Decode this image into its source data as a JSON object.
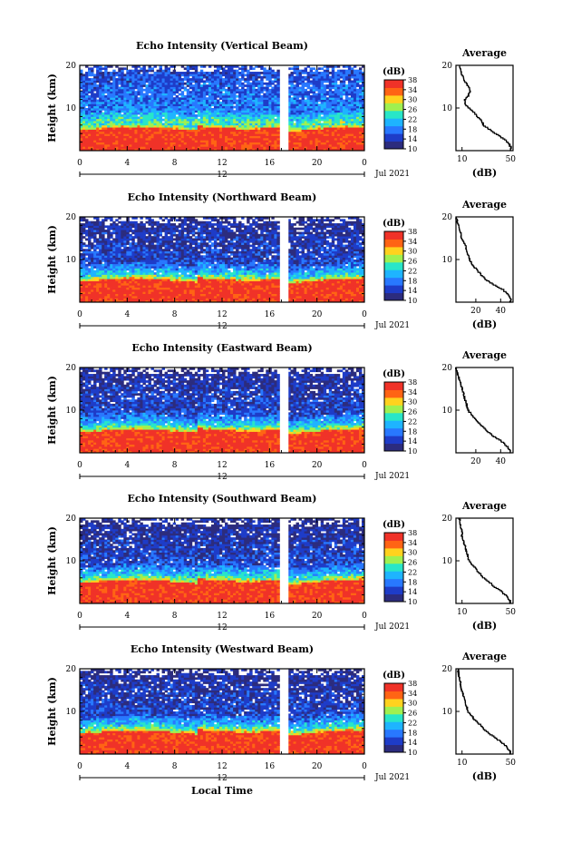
{
  "chart_data": [
    {
      "type": "heatmap",
      "title": "Echo Intensity (Vertical Beam)",
      "ylabel": "Height (km)",
      "ylim": [
        0,
        20
      ],
      "y_ticks": [
        10,
        20
      ],
      "xlim": [
        0,
        24
      ],
      "x_ticks": [
        "0",
        "4",
        "8",
        "12",
        "16",
        "20",
        "0"
      ],
      "x_tick_values": [
        0,
        4,
        8,
        12,
        16,
        20,
        24
      ],
      "date_marker": "12",
      "date_label": "Jul 2021",
      "gap_hours": [
        16.9,
        17.6
      ],
      "colorbar": {
        "unit": "(dB)",
        "ticks": [
          "10",
          "14",
          "18",
          "22",
          "26",
          "30",
          "34",
          "38"
        ],
        "range": [
          10,
          38
        ],
        "colors": [
          "#2c2c7e",
          "#1e3cc8",
          "#2878ff",
          "#1eb4ff",
          "#28e6c8",
          "#a0f050",
          "#ffd21e",
          "#ff6414",
          "#f03228"
        ]
      },
      "profile": {
        "title": "Average",
        "xlabel": "(dB)",
        "x_ticks": [
          "10",
          "50"
        ],
        "x_tick_values": [
          10,
          50
        ],
        "xlim": [
          5,
          52
        ],
        "height_km": [
          0,
          1,
          2,
          3,
          4,
          5,
          6,
          7,
          8,
          9,
          10,
          11,
          12,
          13,
          14,
          15,
          16,
          17,
          18,
          19,
          20
        ],
        "value_db": [
          50,
          50,
          48,
          44,
          38,
          33,
          28,
          26,
          23,
          20,
          16,
          13,
          12,
          15,
          17,
          16,
          13,
          11,
          10,
          9,
          8
        ]
      }
    },
    {
      "type": "heatmap",
      "title": "Echo Intensity (Northward Beam)",
      "ylabel": "Height (km)",
      "ylim": [
        0,
        20
      ],
      "y_ticks": [
        10,
        20
      ],
      "xlim": [
        0,
        24
      ],
      "x_ticks": [
        "0",
        "4",
        "8",
        "12",
        "16",
        "20",
        "0"
      ],
      "x_tick_values": [
        0,
        4,
        8,
        12,
        16,
        20,
        24
      ],
      "date_marker": "12",
      "date_label": "Jul 2021",
      "gap_hours": [
        16.9,
        17.6
      ],
      "colorbar": {
        "unit": "(dB)",
        "ticks": [
          "10",
          "14",
          "18",
          "22",
          "26",
          "30",
          "34",
          "38"
        ],
        "range": [
          10,
          38
        ],
        "colors": [
          "#2c2c7e",
          "#1e3cc8",
          "#2878ff",
          "#1eb4ff",
          "#28e6c8",
          "#a0f050",
          "#ffd21e",
          "#ff6414",
          "#f03228"
        ]
      },
      "profile": {
        "title": "Average",
        "xlabel": "(dB)",
        "x_ticks": [
          "20",
          "40"
        ],
        "x_tick_values": [
          20,
          40
        ],
        "xlim": [
          4,
          50
        ],
        "height_km": [
          0,
          1,
          2,
          3,
          4,
          5,
          6,
          7,
          8,
          9,
          10,
          11,
          12,
          13,
          14,
          15,
          16,
          17,
          18,
          19,
          20
        ],
        "value_db": [
          48,
          48,
          46,
          42,
          36,
          30,
          26,
          23,
          20,
          17,
          15,
          14,
          13,
          12,
          11,
          9,
          8,
          7,
          6,
          5,
          4
        ]
      }
    },
    {
      "type": "heatmap",
      "title": "Echo Intensity (Eastward Beam)",
      "ylabel": "Height (km)",
      "ylim": [
        0,
        20
      ],
      "y_ticks": [
        10,
        20
      ],
      "xlim": [
        0,
        24
      ],
      "x_ticks": [
        "0",
        "4",
        "8",
        "12",
        "16",
        "20",
        "0"
      ],
      "x_tick_values": [
        0,
        4,
        8,
        12,
        16,
        20,
        24
      ],
      "date_marker": "12",
      "date_label": "Jul 2021",
      "gap_hours": [
        16.9,
        17.6
      ],
      "colorbar": {
        "unit": "(dB)",
        "ticks": [
          "10",
          "14",
          "18",
          "22",
          "26",
          "30",
          "34",
          "38"
        ],
        "range": [
          10,
          38
        ],
        "colors": [
          "#2c2c7e",
          "#1e3cc8",
          "#2878ff",
          "#1eb4ff",
          "#28e6c8",
          "#a0f050",
          "#ffd21e",
          "#ff6414",
          "#f03228"
        ]
      },
      "profile": {
        "title": "Average",
        "xlabel": "",
        "x_ticks": [
          "20",
          "40"
        ],
        "x_tick_values": [
          20,
          40
        ],
        "xlim": [
          4,
          50
        ],
        "height_km": [
          0,
          1,
          2,
          3,
          4,
          5,
          6,
          7,
          8,
          9,
          10,
          11,
          12,
          13,
          14,
          15,
          16,
          17,
          18,
          19,
          20
        ],
        "value_db": [
          48,
          47,
          44,
          40,
          34,
          30,
          26,
          23,
          20,
          17,
          14,
          13,
          12,
          11,
          10,
          9,
          8,
          7,
          6,
          5,
          4
        ]
      }
    },
    {
      "type": "heatmap",
      "title": "Echo Intensity (Southward Beam)",
      "ylabel": "Height (km)",
      "ylim": [
        0,
        20
      ],
      "y_ticks": [
        10,
        20
      ],
      "xlim": [
        0,
        24
      ],
      "x_ticks": [
        "0",
        "4",
        "8",
        "12",
        "16",
        "20",
        "0"
      ],
      "x_tick_values": [
        0,
        4,
        8,
        12,
        16,
        20,
        24
      ],
      "date_marker": "12",
      "date_label": "Jul 2021",
      "gap_hours": [
        16.9,
        17.6
      ],
      "colorbar": {
        "unit": "(dB)",
        "ticks": [
          "10",
          "14",
          "18",
          "22",
          "26",
          "30",
          "34",
          "38"
        ],
        "range": [
          10,
          38
        ],
        "colors": [
          "#2c2c7e",
          "#1e3cc8",
          "#2878ff",
          "#1eb4ff",
          "#28e6c8",
          "#a0f050",
          "#ffd21e",
          "#ff6414",
          "#f03228"
        ]
      },
      "profile": {
        "title": "Average",
        "xlabel": "(dB)",
        "x_ticks": [
          "10",
          "50"
        ],
        "x_tick_values": [
          10,
          50
        ],
        "xlim": [
          5,
          52
        ],
        "height_km": [
          0,
          1,
          2,
          3,
          4,
          5,
          6,
          7,
          8,
          9,
          10,
          11,
          12,
          13,
          14,
          15,
          16,
          17,
          18,
          19,
          20
        ],
        "value_db": [
          50,
          49,
          46,
          42,
          37,
          33,
          28,
          25,
          22,
          19,
          16,
          15,
          14,
          13,
          12,
          11,
          10,
          10,
          9,
          8,
          8
        ]
      }
    },
    {
      "type": "heatmap",
      "title": "Echo Intensity (Westward Beam)",
      "ylabel": "Height (km)",
      "xlabel": "Local Time",
      "ylim": [
        0,
        20
      ],
      "y_ticks": [
        10,
        20
      ],
      "xlim": [
        0,
        24
      ],
      "x_ticks": [
        "0",
        "4",
        "8",
        "12",
        "16",
        "20",
        "0"
      ],
      "x_tick_values": [
        0,
        4,
        8,
        12,
        16,
        20,
        24
      ],
      "date_marker": "12",
      "date_label": "Jul 2021",
      "gap_hours": [
        16.9,
        17.6
      ],
      "colorbar": {
        "unit": "(dB)",
        "ticks": [
          "10",
          "14",
          "18",
          "22",
          "26",
          "30",
          "34",
          "38"
        ],
        "range": [
          10,
          38
        ],
        "colors": [
          "#2c2c7e",
          "#1e3cc8",
          "#2878ff",
          "#1eb4ff",
          "#28e6c8",
          "#a0f050",
          "#ffd21e",
          "#ff6414",
          "#f03228"
        ]
      },
      "profile": {
        "title": "Average",
        "xlabel": "(dB)",
        "x_ticks": [
          "10",
          "50"
        ],
        "x_tick_values": [
          10,
          50
        ],
        "xlim": [
          5,
          52
        ],
        "height_km": [
          0,
          1,
          2,
          3,
          4,
          5,
          6,
          7,
          8,
          9,
          10,
          11,
          12,
          13,
          14,
          15,
          16,
          17,
          18,
          19,
          20
        ],
        "value_db": [
          50,
          49,
          46,
          42,
          37,
          32,
          28,
          25,
          21,
          18,
          15,
          14,
          13,
          12,
          11,
          10,
          9,
          9,
          8,
          7,
          7
        ]
      }
    }
  ]
}
